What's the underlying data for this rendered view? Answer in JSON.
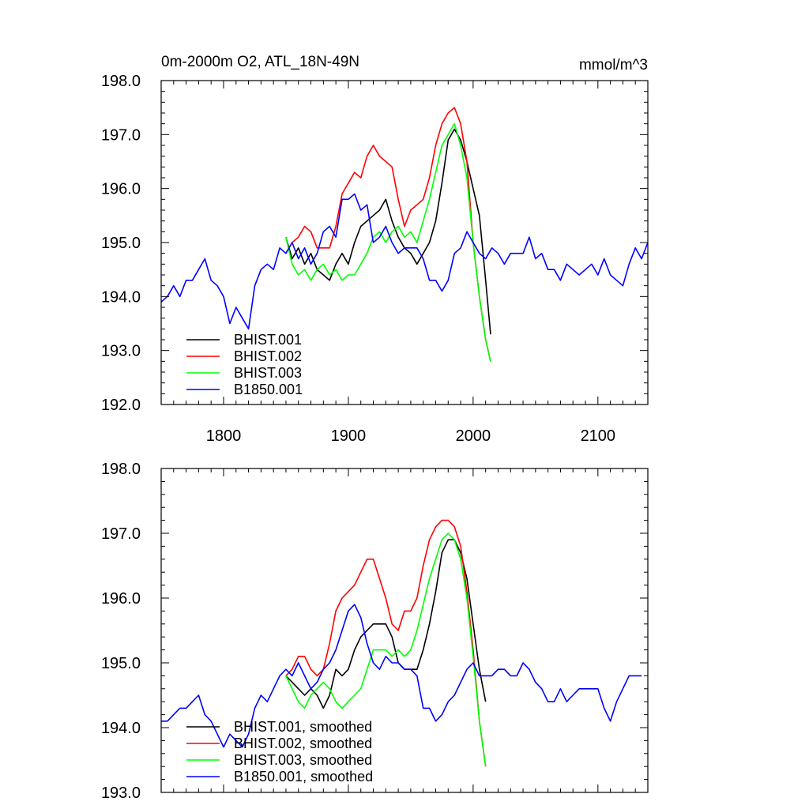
{
  "chart_data": [
    {
      "type": "line",
      "title": "0m-2000m O2, ATL_18N-49N",
      "units": "mmol/m^3",
      "xlim": [
        1750,
        2140
      ],
      "ylim": [
        192.0,
        198.0
      ],
      "xticks": [
        1800,
        1900,
        2000,
        2100
      ],
      "xtick_labels": [
        "1800",
        "1900",
        "2000",
        "2100"
      ],
      "yticks": [
        192.0,
        193.0,
        194.0,
        195.0,
        196.0,
        197.0,
        198.0
      ],
      "ytick_labels": [
        "192.0",
        "193.0",
        "194.0",
        "195.0",
        "196.0",
        "197.0",
        "198.0"
      ],
      "legend_position": "bottom-left",
      "series": [
        {
          "name": "BHIST.001",
          "color": "#000000",
          "x": [
            1850,
            1855,
            1860,
            1865,
            1870,
            1875,
            1880,
            1885,
            1890,
            1895,
            1900,
            1905,
            1910,
            1915,
            1920,
            1925,
            1930,
            1935,
            1940,
            1945,
            1950,
            1955,
            1960,
            1965,
            1970,
            1975,
            1980,
            1985,
            1990,
            1995,
            2000,
            2005,
            2010,
            2014
          ],
          "y": [
            195.1,
            194.7,
            194.9,
            194.6,
            194.8,
            194.5,
            194.4,
            194.3,
            194.6,
            194.8,
            194.6,
            195.0,
            195.3,
            195.4,
            195.5,
            195.6,
            195.8,
            195.4,
            195.1,
            194.9,
            194.8,
            194.6,
            194.8,
            195.0,
            195.4,
            196.1,
            196.9,
            197.1,
            196.9,
            196.5,
            196.0,
            195.5,
            194.3,
            193.3
          ]
        },
        {
          "name": "BHIST.002",
          "color": "#ff0000",
          "x": [
            1850,
            1855,
            1860,
            1865,
            1870,
            1875,
            1880,
            1885,
            1890,
            1895,
            1900,
            1905,
            1910,
            1915,
            1920,
            1925,
            1930,
            1935,
            1940,
            1945,
            1950,
            1955,
            1960,
            1965,
            1970,
            1975,
            1980,
            1985,
            1990,
            1995,
            2000,
            2005,
            2010,
            2014
          ],
          "y": [
            194.8,
            195.0,
            195.1,
            195.3,
            195.2,
            194.9,
            194.9,
            194.9,
            195.3,
            195.9,
            196.1,
            196.3,
            196.2,
            196.6,
            196.8,
            196.6,
            196.5,
            196.4,
            195.8,
            195.3,
            195.6,
            195.7,
            195.8,
            196.2,
            196.8,
            197.2,
            197.4,
            197.5,
            197.2,
            196.5,
            195.0,
            194.0,
            193.2,
            192.8
          ]
        },
        {
          "name": "BHIST.003",
          "color": "#00ff00",
          "x": [
            1850,
            1855,
            1860,
            1865,
            1870,
            1875,
            1880,
            1885,
            1890,
            1895,
            1900,
            1905,
            1910,
            1915,
            1920,
            1925,
            1930,
            1935,
            1940,
            1945,
            1950,
            1955,
            1960,
            1965,
            1970,
            1975,
            1980,
            1985,
            1990,
            1995,
            2000,
            2005,
            2010,
            2014
          ],
          "y": [
            195.1,
            194.6,
            194.4,
            194.5,
            194.3,
            194.5,
            194.6,
            194.4,
            194.5,
            194.3,
            194.4,
            194.4,
            194.6,
            194.8,
            195.1,
            195.2,
            195.0,
            195.2,
            195.3,
            195.1,
            195.2,
            195.0,
            195.4,
            195.8,
            196.3,
            196.8,
            197.0,
            197.2,
            196.8,
            196.2,
            195.0,
            194.0,
            193.2,
            192.8
          ]
        },
        {
          "name": "B1850.001",
          "color": "#0000ff",
          "x": [
            1750,
            1755,
            1760,
            1765,
            1770,
            1775,
            1780,
            1785,
            1790,
            1795,
            1800,
            1805,
            1810,
            1815,
            1820,
            1825,
            1830,
            1835,
            1840,
            1845,
            1850,
            1855,
            1860,
            1865,
            1870,
            1875,
            1880,
            1885,
            1890,
            1895,
            1900,
            1905,
            1910,
            1915,
            1920,
            1925,
            1930,
            1935,
            1940,
            1945,
            1950,
            1955,
            1960,
            1965,
            1970,
            1975,
            1980,
            1985,
            1990,
            1995,
            2000,
            2005,
            2010,
            2015,
            2020,
            2025,
            2030,
            2035,
            2040,
            2045,
            2050,
            2055,
            2060,
            2065,
            2070,
            2075,
            2080,
            2085,
            2090,
            2095,
            2100,
            2105,
            2110,
            2115,
            2120,
            2125,
            2130,
            2135,
            2140
          ],
          "y": [
            193.9,
            194.0,
            194.2,
            194.0,
            194.3,
            194.3,
            194.5,
            194.7,
            194.3,
            194.2,
            194.0,
            193.5,
            193.8,
            193.6,
            193.4,
            194.2,
            194.5,
            194.6,
            194.5,
            194.9,
            194.8,
            195.0,
            194.7,
            194.9,
            194.6,
            194.8,
            195.2,
            195.3,
            195.1,
            195.8,
            195.8,
            195.9,
            195.6,
            195.7,
            195.0,
            195.1,
            195.3,
            195.0,
            194.8,
            194.9,
            194.9,
            194.9,
            194.7,
            194.3,
            194.3,
            194.1,
            194.3,
            194.8,
            194.9,
            195.2,
            195.0,
            194.8,
            194.7,
            194.9,
            194.8,
            194.6,
            194.8,
            194.8,
            194.8,
            195.1,
            194.7,
            194.8,
            194.5,
            194.5,
            194.3,
            194.6,
            194.5,
            194.4,
            194.5,
            194.6,
            194.4,
            194.7,
            194.4,
            194.3,
            194.2,
            194.6,
            194.9,
            194.7,
            195.0
          ]
        }
      ]
    },
    {
      "type": "line",
      "xlim": [
        1750,
        2140
      ],
      "ylim": [
        193.0,
        198.0
      ],
      "xticks": [
        1800,
        1900,
        2000,
        2100
      ],
      "yticks": [
        193.0,
        194.0,
        195.0,
        196.0,
        197.0,
        198.0
      ],
      "ytick_labels": [
        "193.0",
        "194.0",
        "195.0",
        "196.0",
        "197.0",
        "198.0"
      ],
      "legend_position": "bottom-left",
      "series": [
        {
          "name": "BHIST.001, smoothed",
          "color": "#000000",
          "x": [
            1850,
            1855,
            1860,
            1865,
            1870,
            1875,
            1880,
            1885,
            1890,
            1895,
            1900,
            1905,
            1910,
            1915,
            1920,
            1925,
            1930,
            1935,
            1940,
            1945,
            1950,
            1955,
            1960,
            1965,
            1970,
            1975,
            1980,
            1985,
            1990,
            1995,
            2000,
            2005,
            2010
          ],
          "y": [
            194.8,
            194.7,
            194.6,
            194.5,
            194.6,
            194.5,
            194.3,
            194.5,
            194.9,
            194.8,
            194.9,
            195.2,
            195.4,
            195.5,
            195.6,
            195.6,
            195.6,
            195.4,
            195.0,
            194.9,
            194.9,
            194.9,
            195.2,
            195.6,
            196.1,
            196.7,
            196.9,
            196.9,
            196.7,
            196.3,
            195.6,
            194.9,
            194.4
          ]
        },
        {
          "name": "BHIST.002, smoothed",
          "color": "#ff0000",
          "x": [
            1850,
            1855,
            1860,
            1865,
            1870,
            1875,
            1880,
            1885,
            1890,
            1895,
            1900,
            1905,
            1910,
            1915,
            1920,
            1925,
            1930,
            1935,
            1940,
            1945,
            1950,
            1955,
            1960,
            1965,
            1970,
            1975,
            1980,
            1985,
            1990,
            1995,
            2000,
            2005,
            2010
          ],
          "y": [
            194.8,
            194.9,
            195.1,
            195.1,
            194.9,
            194.8,
            194.9,
            195.3,
            195.8,
            196.0,
            196.1,
            196.2,
            196.4,
            196.6,
            196.6,
            196.3,
            196.0,
            195.6,
            195.5,
            195.8,
            195.8,
            196.0,
            196.5,
            196.9,
            197.1,
            197.2,
            197.2,
            197.1,
            196.8,
            196.1,
            195.2,
            194.1,
            193.4
          ]
        },
        {
          "name": "BHIST.003, smoothed",
          "color": "#00ff00",
          "x": [
            1850,
            1855,
            1860,
            1865,
            1870,
            1875,
            1880,
            1885,
            1890,
            1895,
            1900,
            1905,
            1910,
            1915,
            1920,
            1925,
            1930,
            1935,
            1940,
            1945,
            1950,
            1955,
            1960,
            1965,
            1970,
            1975,
            1980,
            1985,
            1990,
            1995,
            2000,
            2005,
            2010
          ],
          "y": [
            194.8,
            194.6,
            194.4,
            194.3,
            194.5,
            194.6,
            194.7,
            194.6,
            194.4,
            194.3,
            194.4,
            194.5,
            194.6,
            194.9,
            195.2,
            195.2,
            195.2,
            195.1,
            195.2,
            195.1,
            195.2,
            195.5,
            195.9,
            196.3,
            196.6,
            196.9,
            197.0,
            196.9,
            196.6,
            196.0,
            195.1,
            194.1,
            193.4
          ]
        },
        {
          "name": "B1850.001, smoothed",
          "color": "#0000ff",
          "x": [
            1750,
            1755,
            1760,
            1765,
            1770,
            1775,
            1780,
            1785,
            1790,
            1795,
            1800,
            1805,
            1810,
            1815,
            1820,
            1825,
            1830,
            1835,
            1840,
            1845,
            1850,
            1855,
            1860,
            1865,
            1870,
            1875,
            1880,
            1885,
            1890,
            1895,
            1900,
            1905,
            1910,
            1915,
            1920,
            1925,
            1930,
            1935,
            1940,
            1945,
            1950,
            1955,
            1960,
            1965,
            1970,
            1975,
            1980,
            1985,
            1990,
            1995,
            2000,
            2005,
            2010,
            2015,
            2020,
            2025,
            2030,
            2035,
            2040,
            2045,
            2050,
            2055,
            2060,
            2065,
            2070,
            2075,
            2080,
            2085,
            2090,
            2095,
            2100,
            2105,
            2110,
            2115,
            2120,
            2125,
            2130,
            2135
          ],
          "y": [
            194.1,
            194.1,
            194.2,
            194.3,
            194.3,
            194.4,
            194.5,
            194.2,
            194.1,
            193.9,
            193.7,
            193.9,
            193.8,
            193.7,
            193.9,
            194.3,
            194.5,
            194.4,
            194.6,
            194.8,
            194.9,
            194.8,
            195.0,
            194.8,
            194.6,
            194.7,
            194.9,
            195.0,
            195.2,
            195.5,
            195.8,
            195.9,
            195.7,
            195.3,
            195.0,
            194.9,
            195.1,
            195.0,
            195.0,
            194.9,
            194.9,
            194.8,
            194.3,
            194.3,
            194.1,
            194.2,
            194.4,
            194.5,
            194.7,
            194.9,
            195.0,
            194.8,
            194.8,
            194.8,
            194.9,
            194.9,
            194.8,
            194.8,
            195.0,
            194.9,
            194.7,
            194.6,
            194.4,
            194.4,
            194.6,
            194.4,
            194.5,
            194.6,
            194.6,
            194.6,
            194.6,
            194.3,
            194.1,
            194.4,
            194.6,
            194.8,
            194.8,
            194.8
          ]
        }
      ]
    }
  ]
}
